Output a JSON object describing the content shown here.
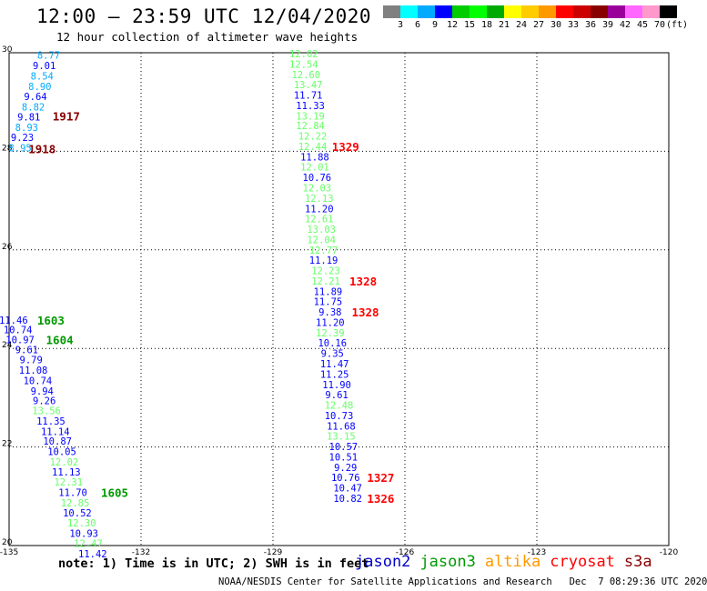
{
  "title": "12:00 – 23:59 UTC 12/04/2020",
  "subtitle": "12 hour collection of altimeter wave heights",
  "legend": {
    "colors": [
      "#808080",
      "#00ffff",
      "#00aaff",
      "#0000ff",
      "#00cc00",
      "#00ff00",
      "#00aa00",
      "#ffff00",
      "#ffcc00",
      "#ff9900",
      "#ff0000",
      "#cc0000",
      "#880000",
      "#990099",
      "#ff66ff",
      "#ff99cc",
      "#000000"
    ],
    "labels": [
      "3",
      "6",
      "9",
      "12",
      "15",
      "18",
      "21",
      "24",
      "27",
      "30",
      "33",
      "36",
      "39",
      "42",
      "45",
      "70",
      "(ft)"
    ]
  },
  "note": "note: 1) Time is in UTC; 2) SWH is in feet",
  "satellites": [
    {
      "name": "jason2",
      "color": "#0000cc"
    },
    {
      "name": "jason3",
      "color": "#009900"
    },
    {
      "name": "altika",
      "color": "#ff9900"
    },
    {
      "name": "cryosat",
      "color": "#ff0000"
    },
    {
      "name": "s3a",
      "color": "#880000"
    }
  ],
  "credit": "NOAA/NESDIS Center for Satellite Applications and Research   Dec  7 08:29:36 UTC 2020",
  "map": {
    "lon_range": [
      -135,
      -120
    ],
    "lat_range": [
      20,
      30
    ],
    "lon_ticks": [
      "-135",
      "-132",
      "-129",
      "-126",
      "-123",
      "-120"
    ],
    "lat_ticks": [
      "30",
      "28",
      "26",
      "24",
      "22",
      "20"
    ],
    "grid": true
  },
  "tracks": [
    {
      "track": "left-upper",
      "points": [
        {
          "swh": "8.77",
          "lon": -134.1,
          "lat": 29.95,
          "color": "#00aaff"
        },
        {
          "swh": "9.01",
          "lon": -134.2,
          "lat": 29.74,
          "color": "#0000ff"
        },
        {
          "swh": "8.54",
          "lon": -134.25,
          "lat": 29.53,
          "color": "#00aaff"
        },
        {
          "swh": "8.90",
          "lon": -134.3,
          "lat": 29.32,
          "color": "#00aaff"
        },
        {
          "swh": "9.64",
          "lon": -134.4,
          "lat": 29.11,
          "color": "#0000ff"
        },
        {
          "swh": "8.82",
          "lon": -134.45,
          "lat": 28.9,
          "color": "#00aaff"
        },
        {
          "swh": "9.81",
          "lon": -134.55,
          "lat": 28.7,
          "color": "#0000ff"
        },
        {
          "swh": "8.93",
          "lon": -134.6,
          "lat": 28.49,
          "color": "#00aaff"
        },
        {
          "swh": "9.23",
          "lon": -134.7,
          "lat": 28.28,
          "color": "#0000ff"
        },
        {
          "swh": "8.95",
          "lon": -134.75,
          "lat": 28.07,
          "color": "#00aaff"
        }
      ]
    },
    {
      "track": "left-lower",
      "points": [
        {
          "swh": "11.46",
          "lon": -134.9,
          "lat": 24.58,
          "color": "#0000ff"
        },
        {
          "swh": "10.74",
          "lon": -134.8,
          "lat": 24.38,
          "color": "#0000ff"
        },
        {
          "swh": "10.97",
          "lon": -134.75,
          "lat": 24.18,
          "color": "#0000ff"
        },
        {
          "swh": "9.61",
          "lon": -134.6,
          "lat": 23.98,
          "color": "#0000ff"
        },
        {
          "swh": "9.79",
          "lon": -134.5,
          "lat": 23.77,
          "color": "#0000ff"
        },
        {
          "swh": "11.08",
          "lon": -134.45,
          "lat": 23.56,
          "color": "#0000ff"
        },
        {
          "swh": "10.74",
          "lon": -134.35,
          "lat": 23.35,
          "color": "#0000ff"
        },
        {
          "swh": "9.94",
          "lon": -134.25,
          "lat": 23.14,
          "color": "#0000ff"
        },
        {
          "swh": "9.26",
          "lon": -134.2,
          "lat": 22.94,
          "color": "#0000ff"
        },
        {
          "swh": "13.56",
          "lon": -134.15,
          "lat": 22.74,
          "color": "#66ff66"
        },
        {
          "swh": "11.35",
          "lon": -134.05,
          "lat": 22.53,
          "color": "#0000ff"
        },
        {
          "swh": "11.14",
          "lon": -133.95,
          "lat": 22.32,
          "color": "#0000ff"
        },
        {
          "swh": "10.87",
          "lon": -133.9,
          "lat": 22.12,
          "color": "#0000ff"
        },
        {
          "swh": "10.05",
          "lon": -133.8,
          "lat": 21.91,
          "color": "#0000ff"
        },
        {
          "swh": "12.02",
          "lon": -133.75,
          "lat": 21.7,
          "color": "#66ff66"
        },
        {
          "swh": "11.13",
          "lon": -133.7,
          "lat": 21.49,
          "color": "#0000ff"
        },
        {
          "swh": "12.31",
          "lon": -133.65,
          "lat": 21.29,
          "color": "#66ff66"
        },
        {
          "swh": "11.70",
          "lon": -133.55,
          "lat": 21.08,
          "color": "#0000ff"
        },
        {
          "swh": "12.85",
          "lon": -133.5,
          "lat": 20.87,
          "color": "#66ff66"
        },
        {
          "swh": "10.52",
          "lon": -133.45,
          "lat": 20.66,
          "color": "#0000ff"
        },
        {
          "swh": "12.30",
          "lon": -133.35,
          "lat": 20.46,
          "color": "#66ff66"
        },
        {
          "swh": "10.93",
          "lon": -133.3,
          "lat": 20.25,
          "color": "#0000ff"
        },
        {
          "swh": "12.47",
          "lon": -133.2,
          "lat": 20.05,
          "color": "#66ff66"
        },
        {
          "swh": "11.42",
          "lon": -133.1,
          "lat": 19.83,
          "color": "#0000ff"
        }
      ]
    },
    {
      "track": "right",
      "points": [
        {
          "swh": "12.02",
          "lon": -128.3,
          "lat": 29.98,
          "color": "#66ff66"
        },
        {
          "swh": "12.54",
          "lon": -128.3,
          "lat": 29.77,
          "color": "#66ff66"
        },
        {
          "swh": "12.60",
          "lon": -128.25,
          "lat": 29.56,
          "color": "#66ff66"
        },
        {
          "swh": "13.47",
          "lon": -128.2,
          "lat": 29.35,
          "color": "#66ff66"
        },
        {
          "swh": "11.71",
          "lon": -128.2,
          "lat": 29.14,
          "color": "#0000ff"
        },
        {
          "swh": "11.33",
          "lon": -128.15,
          "lat": 28.93,
          "color": "#0000ff"
        },
        {
          "swh": "13.19",
          "lon": -128.15,
          "lat": 28.72,
          "color": "#66ff66"
        },
        {
          "swh": "12.84",
          "lon": -128.15,
          "lat": 28.52,
          "color": "#66ff66"
        },
        {
          "swh": "12.22",
          "lon": -128.1,
          "lat": 28.31,
          "color": "#66ff66"
        },
        {
          "swh": "12.44",
          "lon": -128.1,
          "lat": 28.1,
          "color": "#66ff66"
        },
        {
          "swh": "11.88",
          "lon": -128.05,
          "lat": 27.89,
          "color": "#0000ff"
        },
        {
          "swh": "12.01",
          "lon": -128.05,
          "lat": 27.68,
          "color": "#66ff66"
        },
        {
          "swh": "10.76",
          "lon": -128.0,
          "lat": 27.47,
          "color": "#0000ff"
        },
        {
          "swh": "12.03",
          "lon": -128.0,
          "lat": 27.26,
          "color": "#66ff66"
        },
        {
          "swh": "12.13",
          "lon": -127.95,
          "lat": 27.05,
          "color": "#66ff66"
        },
        {
          "swh": "11.20",
          "lon": -127.95,
          "lat": 26.84,
          "color": "#0000ff"
        },
        {
          "swh": "12.61",
          "lon": -127.95,
          "lat": 26.63,
          "color": "#66ff66"
        },
        {
          "swh": "13.03",
          "lon": -127.9,
          "lat": 26.42,
          "color": "#66ff66"
        },
        {
          "swh": "12.04",
          "lon": -127.9,
          "lat": 26.21,
          "color": "#66ff66"
        },
        {
          "swh": "12.77",
          "lon": -127.85,
          "lat": 26.0,
          "color": "#66ff66"
        },
        {
          "swh": "11.19",
          "lon": -127.85,
          "lat": 25.79,
          "color": "#0000ff"
        },
        {
          "swh": "12.23",
          "lon": -127.8,
          "lat": 25.58,
          "color": "#66ff66"
        },
        {
          "swh": "12.21",
          "lon": -127.8,
          "lat": 25.37,
          "color": "#66ff66"
        },
        {
          "swh": "11.89",
          "lon": -127.75,
          "lat": 25.16,
          "color": "#0000ff"
        },
        {
          "swh": "11.75",
          "lon": -127.75,
          "lat": 24.95,
          "color": "#0000ff"
        },
        {
          "swh": "9.38",
          "lon": -127.7,
          "lat": 24.74,
          "color": "#0000ff"
        },
        {
          "swh": "11.20",
          "lon": -127.7,
          "lat": 24.53,
          "color": "#0000ff"
        },
        {
          "swh": "12.39",
          "lon": -127.7,
          "lat": 24.32,
          "color": "#66ff66"
        },
        {
          "swh": "10.16",
          "lon": -127.65,
          "lat": 24.11,
          "color": "#0000ff"
        },
        {
          "swh": "9.35",
          "lon": -127.65,
          "lat": 23.9,
          "color": "#0000ff"
        },
        {
          "swh": "11.47",
          "lon": -127.6,
          "lat": 23.69,
          "color": "#0000ff"
        },
        {
          "swh": "11.25",
          "lon": -127.6,
          "lat": 23.48,
          "color": "#0000ff"
        },
        {
          "swh": "11.90",
          "lon": -127.55,
          "lat": 23.27,
          "color": "#0000ff"
        },
        {
          "swh": "9.61",
          "lon": -127.55,
          "lat": 23.06,
          "color": "#0000ff"
        },
        {
          "swh": "12.48",
          "lon": -127.5,
          "lat": 22.85,
          "color": "#66ff66"
        },
        {
          "swh": "10.73",
          "lon": -127.5,
          "lat": 22.64,
          "color": "#0000ff"
        },
        {
          "swh": "11.68",
          "lon": -127.45,
          "lat": 22.43,
          "color": "#0000ff"
        },
        {
          "swh": "13.15",
          "lon": -127.45,
          "lat": 22.22,
          "color": "#66ff66"
        },
        {
          "swh": "10.57",
          "lon": -127.4,
          "lat": 22.01,
          "color": "#0000ff"
        },
        {
          "swh": "10.51",
          "lon": -127.4,
          "lat": 21.8,
          "color": "#0000ff"
        },
        {
          "swh": "9.29",
          "lon": -127.35,
          "lat": 21.59,
          "color": "#0000ff"
        },
        {
          "swh": "10.76",
          "lon": -127.35,
          "lat": 21.38,
          "color": "#0000ff"
        },
        {
          "swh": "10.47",
          "lon": -127.3,
          "lat": 21.17,
          "color": "#0000ff"
        },
        {
          "swh": "10.82",
          "lon": -127.3,
          "lat": 20.96,
          "color": "#0000ff"
        }
      ]
    }
  ],
  "pass_times": [
    {
      "time": "1917",
      "lon": -133.7,
      "lat": 28.72,
      "color": "#880000"
    },
    {
      "time": "1918",
      "lon": -134.25,
      "lat": 28.05,
      "color": "#880000"
    },
    {
      "time": "1329",
      "lon": -127.35,
      "lat": 28.1,
      "color": "#ff0000"
    },
    {
      "time": "1603",
      "lon": -134.05,
      "lat": 24.58,
      "color": "#009900"
    },
    {
      "time": "1604",
      "lon": -133.85,
      "lat": 24.18,
      "color": "#009900"
    },
    {
      "time": "1328",
      "lon": -126.95,
      "lat": 25.37,
      "color": "#ff0000"
    },
    {
      "time": "1328",
      "lon": -126.9,
      "lat": 24.74,
      "color": "#ff0000"
    },
    {
      "time": "1605",
      "lon": -132.6,
      "lat": 21.08,
      "color": "#009900"
    },
    {
      "time": "1327",
      "lon": -126.55,
      "lat": 21.38,
      "color": "#ff0000"
    },
    {
      "time": "1326",
      "lon": -126.55,
      "lat": 20.96,
      "color": "#ff0000"
    }
  ]
}
